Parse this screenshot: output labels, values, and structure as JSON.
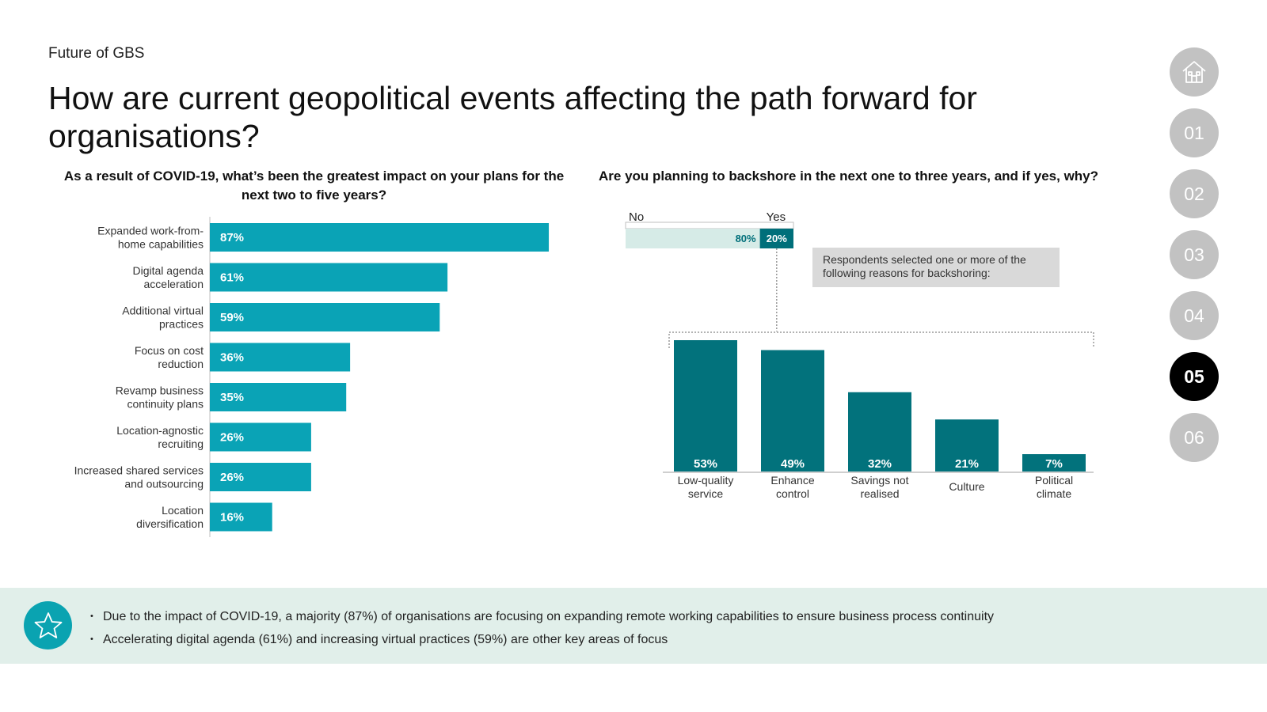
{
  "header": {
    "eyebrow": "Future of GBS",
    "title": "How are current geopolitical events affecting the path forward for organisations?"
  },
  "nav": {
    "items": [
      {
        "label": "",
        "icon": "home-icon",
        "active": false
      },
      {
        "label": "01",
        "active": false
      },
      {
        "label": "02",
        "active": false
      },
      {
        "label": "03",
        "active": false
      },
      {
        "label": "04",
        "active": false
      },
      {
        "label": "05",
        "active": true
      },
      {
        "label": "06",
        "active": false
      }
    ]
  },
  "colors": {
    "left_bar": "#0aa3b6",
    "right_bar": "#02727c",
    "no_segment": "#d6ebe7",
    "yes_segment": "#006f7a",
    "banner_bg": "#e1efea",
    "nav_inactive": "#c2c2c2",
    "nav_active": "#000000"
  },
  "yes_no": {
    "no_label": "No",
    "yes_label": "Yes",
    "no_value": 80,
    "yes_value": 20,
    "no_text": "80%",
    "yes_text": "20%"
  },
  "note": "Respondents selected one or more of the following reasons for backshoring:",
  "chart_data": [
    {
      "type": "bar",
      "orientation": "horizontal",
      "title": "As a result of COVID-19, what’s been the greatest impact on your plans for the next two to five years?",
      "categories": [
        [
          "Expanded work-from-",
          "home capabilities"
        ],
        [
          "Digital agenda",
          "acceleration"
        ],
        [
          "Additional virtual",
          "practices"
        ],
        [
          "Focus on cost",
          "reduction"
        ],
        [
          "Revamp business",
          "continuity plans"
        ],
        [
          "Location-agnostic",
          "recruiting"
        ],
        [
          "Increased shared services",
          "and outsourcing"
        ],
        [
          "Location",
          "diversification"
        ]
      ],
      "values": [
        87,
        61,
        59,
        36,
        35,
        26,
        26,
        16
      ],
      "value_labels": [
        "87%",
        "61%",
        "59%",
        "36%",
        "35%",
        "26%",
        "26%",
        "16%"
      ],
      "unit": "%",
      "xlim": [
        0,
        100
      ]
    },
    {
      "type": "bar",
      "orientation": "vertical",
      "title": "Are you planning to backshore in the next one to three years, and if yes, why?",
      "categories": [
        [
          "Low-quality",
          "service"
        ],
        [
          "Enhance",
          "control"
        ],
        [
          "Savings not",
          "realised"
        ],
        [
          "Culture"
        ],
        [
          "Political",
          "climate"
        ]
      ],
      "values": [
        53,
        49,
        32,
        21,
        7
      ],
      "value_labels": [
        "53%",
        "49%",
        "32%",
        "21%",
        "7%"
      ],
      "unit": "%",
      "ylim": [
        0,
        60
      ]
    }
  ],
  "banner": {
    "icon": "star-icon",
    "bullets": [
      "Due to the impact of COVID-19, a majority (87%) of organisations are focusing on expanding remote working capabilities to ensure business process continuity",
      "Accelerating digital agenda (61%) and increasing virtual practices (59%) are other key areas of focus"
    ]
  }
}
